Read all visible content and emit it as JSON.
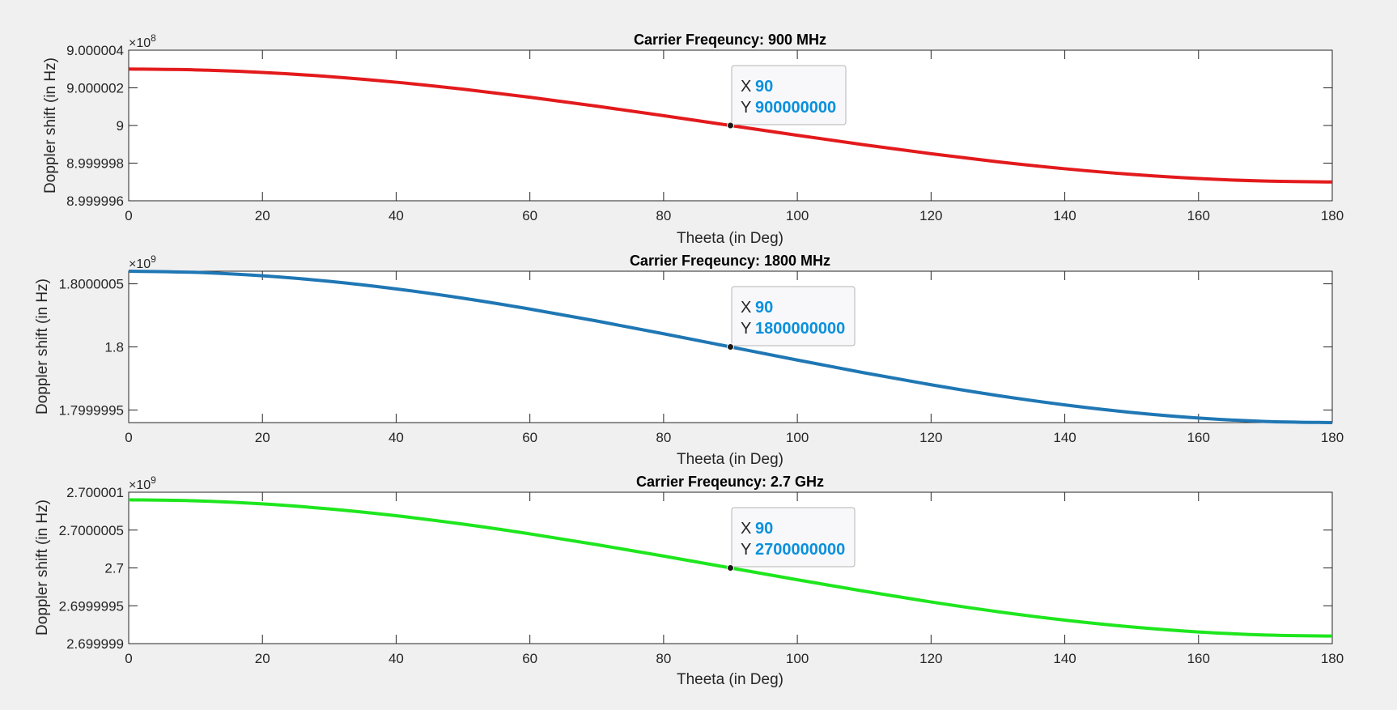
{
  "chart_data": [
    {
      "type": "line",
      "title": "Carrier Freqeuncy: 900 MHz",
      "xlabel": "Theeta (in Deg)",
      "ylabel": "Doppler shift (in Hz)",
      "xlim": [
        0,
        180
      ],
      "xticks": [
        0,
        20,
        40,
        60,
        80,
        100,
        120,
        140,
        160,
        180
      ],
      "ylim": [
        899999600,
        900000400
      ],
      "yticks": [
        899999600,
        899999800,
        900000000,
        900000200,
        900000400
      ],
      "ytick_labels": [
        "8.999996",
        "8.999998",
        "9",
        "9.000002",
        "9.000004"
      ],
      "exponent_label": {
        "base": "×10",
        "exp": "8"
      },
      "color": "#e31a1c",
      "series": [
        {
          "x": [
            0,
            10,
            20,
            30,
            40,
            50,
            60,
            70,
            80,
            90,
            100,
            110,
            120,
            130,
            140,
            150,
            160,
            170,
            180
          ],
          "y": [
            900000300,
            900000295.4,
            900000281.9,
            900000259.8,
            900000229.8,
            900000192.8,
            900000150,
            900000102.6,
            900000052.1,
            900000000,
            899999947.9,
            899999897.4,
            899999850,
            899999807.2,
            899999770.2,
            899999740.2,
            899999718.1,
            899999704.6,
            899999700
          ]
        }
      ],
      "datatip": {
        "x_label": "X",
        "x_value": "90",
        "y_label": "Y",
        "y_value": "900000000",
        "x": 90,
        "y": 900000000
      }
    },
    {
      "type": "line",
      "title": "Carrier Freqeuncy: 1800 MHz",
      "xlabel": "Theeta (in Deg)",
      "ylabel": "Doppler shift (in Hz)",
      "xlim": [
        0,
        180
      ],
      "xticks": [
        0,
        20,
        40,
        60,
        80,
        100,
        120,
        140,
        160,
        180
      ],
      "ylim": [
        1799999400,
        1800000600
      ],
      "yticks": [
        1799999500,
        1800000000,
        1800000500
      ],
      "ytick_labels": [
        "1.7999995",
        "1.8",
        "1.8000005"
      ],
      "exponent_label": {
        "base": "×10",
        "exp": "9"
      },
      "color": "#1f77b4",
      "series": [
        {
          "x": [
            0,
            10,
            20,
            30,
            40,
            50,
            60,
            70,
            80,
            90,
            100,
            110,
            120,
            130,
            140,
            150,
            160,
            170,
            180
          ],
          "y": [
            1800000600,
            1800000590.9,
            1800000563.8,
            1800000519.6,
            1800000459.6,
            1800000385.7,
            1800000300,
            1800000205.2,
            1800000104.2,
            1800000000,
            1799999895.8,
            1799999794.8,
            1799999700,
            1799999614.3,
            1799999540.4,
            1799999480.4,
            1799999436.2,
            1799999409.1,
            1799999400
          ]
        }
      ],
      "datatip": {
        "x_label": "X",
        "x_value": "90",
        "y_label": "Y",
        "y_value": "1800000000",
        "x": 90,
        "y": 1800000000
      }
    },
    {
      "type": "line",
      "title": "Carrier Freqeuncy: 2.7 GHz",
      "xlabel": "Theeta (in Deg)",
      "ylabel": "Doppler shift (in Hz)",
      "xlim": [
        0,
        180
      ],
      "xticks": [
        0,
        20,
        40,
        60,
        80,
        100,
        120,
        140,
        160,
        180
      ],
      "ylim": [
        2699999000,
        2700001000
      ],
      "yticks": [
        2699999000,
        2699999500,
        2700000000,
        2700000500,
        2700001000
      ],
      "ytick_labels": [
        "2.699999",
        "2.6999995",
        "2.7",
        "2.7000005",
        "2.700001"
      ],
      "exponent_label": {
        "base": "×10",
        "exp": "9"
      },
      "color": "#1ee61e",
      "series": [
        {
          "x": [
            0,
            10,
            20,
            30,
            40,
            50,
            60,
            70,
            80,
            90,
            100,
            110,
            120,
            130,
            140,
            150,
            160,
            170,
            180
          ],
          "y": [
            2700000900,
            2700000886.3,
            2700000845.7,
            2700000779.4,
            2700000689.4,
            2700000578.5,
            2700000450,
            2700000307.8,
            2700000156.3,
            2700000000,
            2699999843.7,
            2699999692.2,
            2699999550,
            2699999421.5,
            2699999310.6,
            2699999220.6,
            2699999154.3,
            2699999113.7,
            2699999100
          ]
        }
      ],
      "datatip": {
        "x_label": "X",
        "x_value": "90",
        "y_label": "Y",
        "y_value": "2700000000",
        "x": 90,
        "y": 2700000000
      }
    }
  ]
}
